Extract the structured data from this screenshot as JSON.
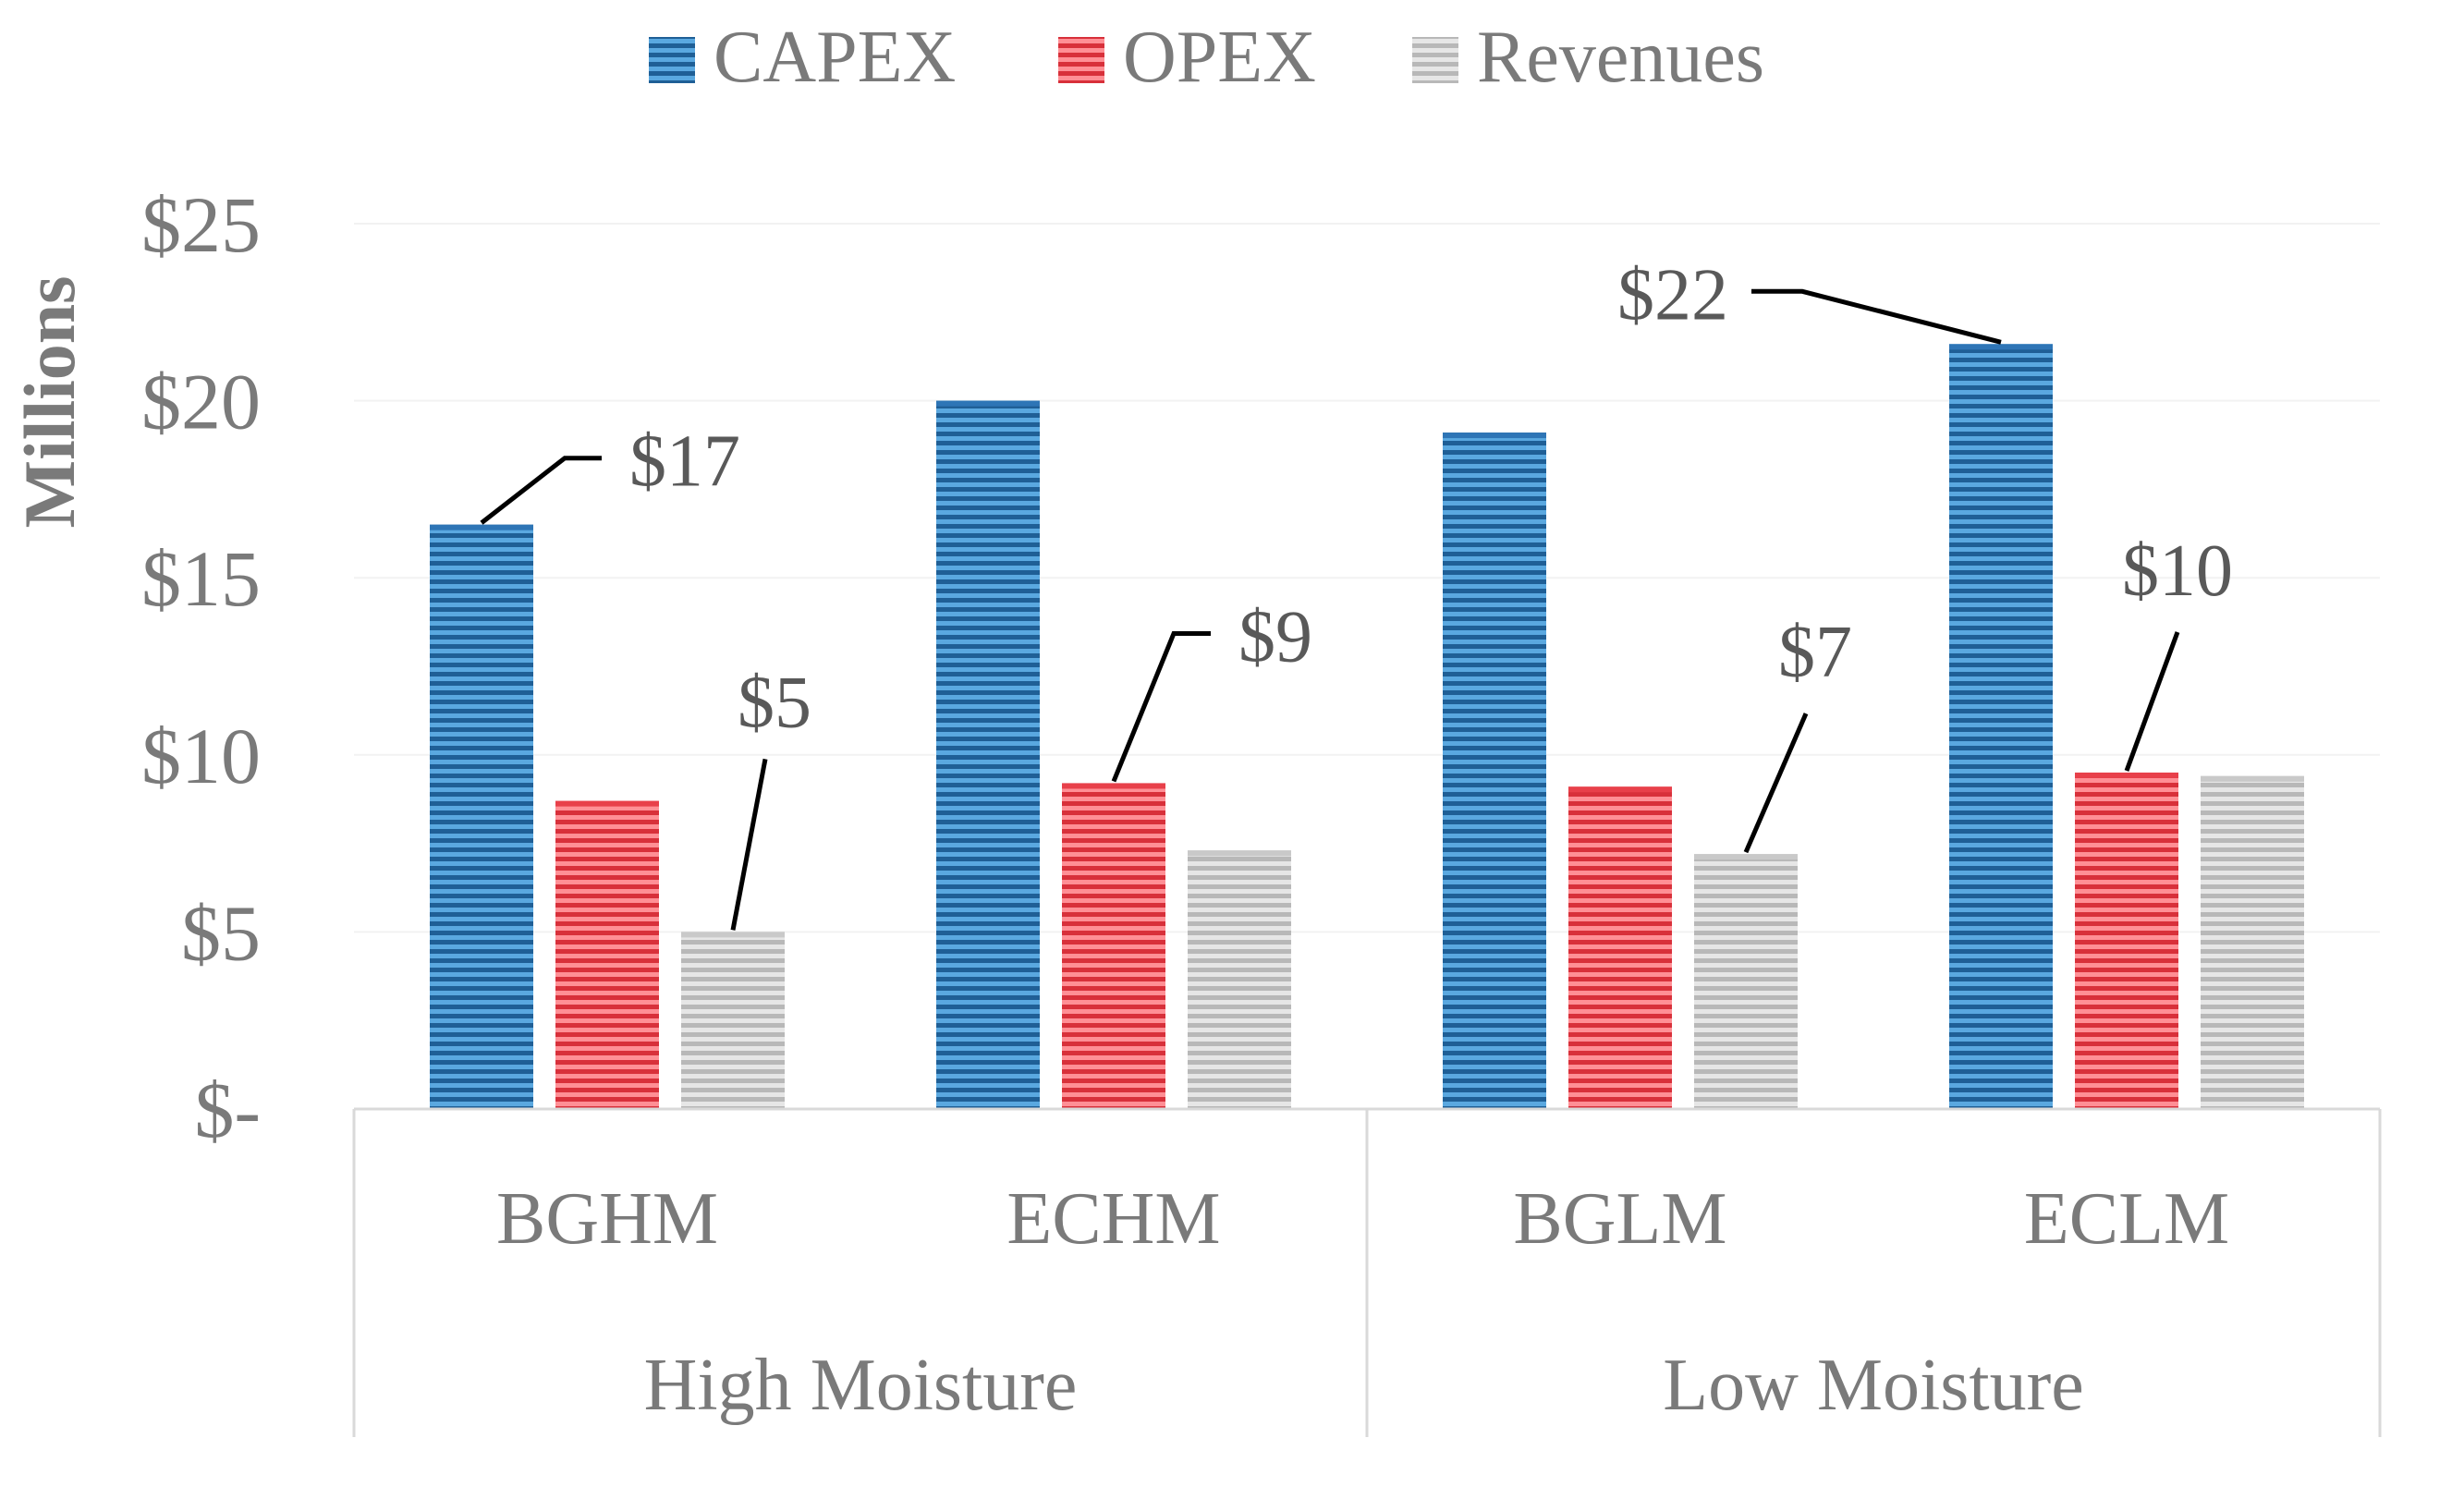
{
  "chart_data": {
    "type": "bar",
    "ylabel": "Millions",
    "ylim": [
      0,
      25
    ],
    "yticks": [
      0,
      5,
      10,
      15,
      20,
      25
    ],
    "ytick_labels": [
      "$-",
      "$5",
      "$10",
      "$15",
      "$20",
      "$25"
    ],
    "groups": [
      {
        "label": "High Moisture",
        "categories": [
          "BGHM",
          "ECHM"
        ]
      },
      {
        "label": "Low Moisture",
        "categories": [
          "BGLM",
          "ECLM"
        ]
      }
    ],
    "categories": [
      "BGHM",
      "ECHM",
      "BGLM",
      "ECLM"
    ],
    "series": [
      {
        "name": "CAPEX",
        "color": "#2e75b6",
        "values": [
          16.5,
          20.0,
          19.1,
          21.6
        ]
      },
      {
        "name": "OPEX",
        "color": "#e8404a",
        "values": [
          8.7,
          9.2,
          9.1,
          9.5
        ]
      },
      {
        "name": "Revenues",
        "color": "#c9c9c9",
        "values": [
          5.0,
          7.3,
          7.2,
          9.4
        ]
      }
    ],
    "data_labels": [
      {
        "series": 0,
        "category": 0,
        "text": "$17"
      },
      {
        "series": 2,
        "category": 0,
        "text": "$5"
      },
      {
        "series": 1,
        "category": 1,
        "text": "$9"
      },
      {
        "series": 2,
        "category": 2,
        "text": "$7"
      },
      {
        "series": 0,
        "category": 3,
        "text": "$22"
      },
      {
        "series": 1,
        "category": 3,
        "text": "$10"
      }
    ],
    "legend": "top"
  }
}
